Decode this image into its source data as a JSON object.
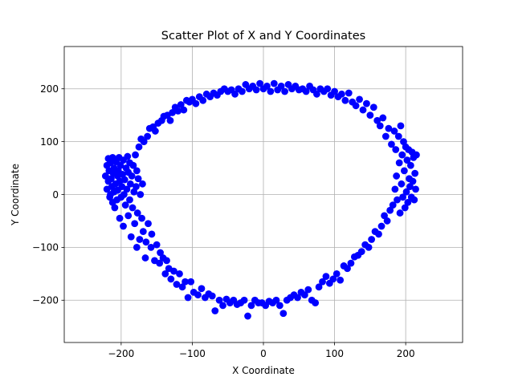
{
  "chart_data": {
    "type": "scatter",
    "title": "Scatter Plot of X and Y Coordinates",
    "xlabel": "X Coordinate",
    "ylabel": "Y Coordinate",
    "xlim": [
      -280,
      280
    ],
    "ylim": [
      -280,
      280
    ],
    "xticks": [
      -200,
      -100,
      0,
      100,
      200
    ],
    "yticks": [
      -200,
      -100,
      0,
      100,
      200
    ],
    "xtick_labels": [
      "−200",
      "−100",
      "0",
      "100",
      "200"
    ],
    "ytick_labels": [
      "−200",
      "−100",
      "0",
      "100",
      "200"
    ],
    "grid": true,
    "marker_color": "#0000ff",
    "series": [
      {
        "points": [
          [
            -222,
            35
          ],
          [
            -220,
            55
          ],
          [
            -220,
            10
          ],
          [
            -218,
            68
          ],
          [
            -218,
            25
          ],
          [
            -217,
            45
          ],
          [
            -216,
            -5
          ],
          [
            -215,
            60
          ],
          [
            -215,
            0
          ],
          [
            -214,
            30
          ],
          [
            -213,
            15
          ],
          [
            -212,
            -15
          ],
          [
            -212,
            70
          ],
          [
            -211,
            40
          ],
          [
            -210,
            5
          ],
          [
            -210,
            50
          ],
          [
            -209,
            -25
          ],
          [
            -208,
            20
          ],
          [
            -207,
            62
          ],
          [
            -206,
            -10
          ],
          [
            -205,
            35
          ],
          [
            -205,
            8
          ],
          [
            -204,
            45
          ],
          [
            -203,
            70
          ],
          [
            -202,
            -45
          ],
          [
            -202,
            25
          ],
          [
            -201,
            55
          ],
          [
            -200,
            -5
          ],
          [
            -199,
            15
          ],
          [
            -198,
            38
          ],
          [
            -197,
            -60
          ],
          [
            -197,
            65
          ],
          [
            -196,
            0
          ],
          [
            -195,
            28
          ],
          [
            -194,
            -20
          ],
          [
            -193,
            50
          ],
          [
            -192,
            10
          ],
          [
            -191,
            72
          ],
          [
            -190,
            -40
          ],
          [
            -190,
            42
          ],
          [
            -188,
            -10
          ],
          [
            -188,
            60
          ],
          [
            -187,
            20
          ],
          [
            -186,
            -80
          ],
          [
            -185,
            35
          ],
          [
            -184,
            -25
          ],
          [
            -183,
            55
          ],
          [
            -182,
            5
          ],
          [
            -181,
            -55
          ],
          [
            -180,
            75
          ],
          [
            -179,
            15
          ],
          [
            -178,
            -100
          ],
          [
            -178,
            45
          ],
          [
            -177,
            -35
          ],
          [
            -176,
            30
          ],
          [
            -175,
            90
          ],
          [
            -174,
            -85
          ],
          [
            -173,
            0
          ],
          [
            -172,
            105
          ],
          [
            -171,
            -45
          ],
          [
            -170,
            20
          ],
          [
            -169,
            -70
          ],
          [
            -168,
            100
          ],
          [
            -166,
            -120
          ],
          [
            -165,
            -90
          ],
          [
            -163,
            110
          ],
          [
            -162,
            -55
          ],
          [
            -160,
            125
          ],
          [
            -158,
            -100
          ],
          [
            -157,
            -75
          ],
          [
            -155,
            128
          ],
          [
            -153,
            -125
          ],
          [
            -152,
            120
          ],
          [
            -150,
            -95
          ],
          [
            -148,
            135
          ],
          [
            -146,
            -130
          ],
          [
            -145,
            -110
          ],
          [
            -143,
            140
          ],
          [
            -141,
            -120
          ],
          [
            -140,
            148
          ],
          [
            -138,
            -150
          ],
          [
            -136,
            -125
          ],
          [
            -135,
            150
          ],
          [
            -133,
            -140
          ],
          [
            -131,
            140
          ],
          [
            -130,
            -160
          ],
          [
            -128,
            155
          ],
          [
            -126,
            -145
          ],
          [
            -124,
            165
          ],
          [
            -122,
            -170
          ],
          [
            -120,
            158
          ],
          [
            -118,
            -150
          ],
          [
            -116,
            170
          ],
          [
            -114,
            -175
          ],
          [
            -112,
            160
          ],
          [
            -110,
            -165
          ],
          [
            -108,
            178
          ],
          [
            -106,
            -195
          ],
          [
            -104,
            175
          ],
          [
            -102,
            -165
          ],
          [
            -100,
            180
          ],
          [
            -98,
            -185
          ],
          [
            -95,
            172
          ],
          [
            -92,
            -190
          ],
          [
            -90,
            185
          ],
          [
            -87,
            -178
          ],
          [
            -85,
            178
          ],
          [
            -82,
            -195
          ],
          [
            -80,
            190
          ],
          [
            -77,
            -188
          ],
          [
            -75,
            185
          ],
          [
            -72,
            -192
          ],
          [
            -70,
            192
          ],
          [
            -68,
            -220
          ],
          [
            -65,
            188
          ],
          [
            -62,
            -200
          ],
          [
            -60,
            195
          ],
          [
            -57,
            -210
          ],
          [
            -55,
            200
          ],
          [
            -52,
            -198
          ],
          [
            -50,
            195
          ],
          [
            -47,
            -205
          ],
          [
            -45,
            198
          ],
          [
            -42,
            -200
          ],
          [
            -40,
            190
          ],
          [
            -37,
            -208
          ],
          [
            -35,
            200
          ],
          [
            -32,
            -205
          ],
          [
            -30,
            195
          ],
          [
            -27,
            -200
          ],
          [
            -25,
            208
          ],
          [
            -22,
            -230
          ],
          [
            -20,
            200
          ],
          [
            -17,
            -210
          ],
          [
            -15,
            205
          ],
          [
            -12,
            -200
          ],
          [
            -10,
            198
          ],
          [
            -7,
            -205
          ],
          [
            -5,
            210
          ],
          [
            -2,
            -205
          ],
          [
            0,
            200
          ],
          [
            3,
            -210
          ],
          [
            5,
            205
          ],
          [
            8,
            -202
          ],
          [
            10,
            195
          ],
          [
            13,
            -205
          ],
          [
            15,
            210
          ],
          [
            18,
            -200
          ],
          [
            20,
            198
          ],
          [
            23,
            -210
          ],
          [
            25,
            205
          ],
          [
            28,
            -225
          ],
          [
            30,
            195
          ],
          [
            33,
            -200
          ],
          [
            35,
            208
          ],
          [
            38,
            -195
          ],
          [
            40,
            200
          ],
          [
            43,
            -190
          ],
          [
            45,
            205
          ],
          [
            48,
            -195
          ],
          [
            50,
            198
          ],
          [
            53,
            -185
          ],
          [
            55,
            200
          ],
          [
            58,
            -190
          ],
          [
            60,
            195
          ],
          [
            63,
            -180
          ],
          [
            65,
            205
          ],
          [
            68,
            -200
          ],
          [
            70,
            198
          ],
          [
            73,
            -205
          ],
          [
            75,
            190
          ],
          [
            78,
            -175
          ],
          [
            80,
            200
          ],
          [
            83,
            -165
          ],
          [
            85,
            195
          ],
          [
            88,
            -155
          ],
          [
            90,
            200
          ],
          [
            93,
            -168
          ],
          [
            95,
            188
          ],
          [
            98,
            -160
          ],
          [
            100,
            195
          ],
          [
            103,
            -150
          ],
          [
            105,
            185
          ],
          [
            108,
            -162
          ],
          [
            110,
            190
          ],
          [
            113,
            -135
          ],
          [
            115,
            178
          ],
          [
            118,
            -140
          ],
          [
            120,
            192
          ],
          [
            123,
            -130
          ],
          [
            125,
            175
          ],
          [
            128,
            -118
          ],
          [
            130,
            168
          ],
          [
            133,
            -115
          ],
          [
            135,
            180
          ],
          [
            138,
            -108
          ],
          [
            140,
            160
          ],
          [
            143,
            -95
          ],
          [
            145,
            172
          ],
          [
            148,
            -100
          ],
          [
            150,
            150
          ],
          [
            152,
            -85
          ],
          [
            155,
            165
          ],
          [
            157,
            -70
          ],
          [
            160,
            140
          ],
          [
            162,
            -75
          ],
          [
            164,
            130
          ],
          [
            166,
            -60
          ],
          [
            168,
            145
          ],
          [
            170,
            -40
          ],
          [
            172,
            110
          ],
          [
            174,
            -50
          ],
          [
            176,
            125
          ],
          [
            178,
            -30
          ],
          [
            180,
            95
          ],
          [
            182,
            -20
          ],
          [
            184,
            120
          ],
          [
            185,
            10
          ],
          [
            186,
            85
          ],
          [
            187,
            35
          ],
          [
            188,
            -10
          ],
          [
            190,
            110
          ],
          [
            191,
            60
          ],
          [
            192,
            -35
          ],
          [
            193,
            130
          ],
          [
            194,
            20
          ],
          [
            195,
            75
          ],
          [
            196,
            -5
          ],
          [
            197,
            100
          ],
          [
            198,
            45
          ],
          [
            199,
            -25
          ],
          [
            200,
            90
          ],
          [
            201,
            5
          ],
          [
            202,
            65
          ],
          [
            203,
            -15
          ],
          [
            204,
            85
          ],
          [
            205,
            30
          ],
          [
            206,
            15
          ],
          [
            207,
            55
          ],
          [
            208,
            -5
          ],
          [
            209,
            80
          ],
          [
            210,
            25
          ],
          [
            211,
            70
          ],
          [
            212,
            -10
          ],
          [
            213,
            40
          ],
          [
            214,
            10
          ],
          [
            215,
            75
          ]
        ]
      }
    ]
  }
}
